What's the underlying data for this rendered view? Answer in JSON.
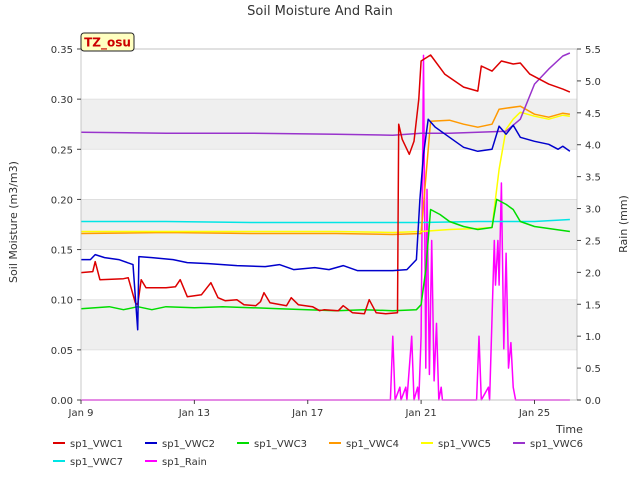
{
  "chart_data": {
    "type": "line",
    "title": "Soil Moisture And Rain",
    "badge": "TZ_osu",
    "xlabel": "Time",
    "ylabel": "Soil Moisture (m3/m3)",
    "y2label": "Rain (mm)",
    "xlim": [
      "2024-01-09",
      "2024-01-26 12:00"
    ],
    "x_ticks": [
      {
        "date": "2024-01-09",
        "label": "Jan 9"
      },
      {
        "date": "2024-01-13",
        "label": "Jan 13"
      },
      {
        "date": "2024-01-17",
        "label": "Jan 17"
      },
      {
        "date": "2024-01-21",
        "label": "Jan 21"
      },
      {
        "date": "2024-01-25",
        "label": "Jan 25"
      }
    ],
    "ylim": [
      0,
      0.35
    ],
    "y_ticks": [
      "0.00",
      "0.05",
      "0.10",
      "0.15",
      "0.20",
      "0.25",
      "0.30",
      "0.35"
    ],
    "y2lim": [
      0,
      5.5
    ],
    "y2_ticks": [
      "0.0",
      "0.5",
      "1.0",
      "1.5",
      "2.0",
      "2.5",
      "3.0",
      "3.5",
      "4.0",
      "4.5",
      "5.0",
      "5.5"
    ],
    "grid": "horizontal alternating bands",
    "legend_position": "bottom",
    "series": [
      {
        "name": "sp1_VWC1",
        "color": "#dd0000",
        "axis": "left",
        "points": [
          [
            "2024-01-09 00:00",
            0.127
          ],
          [
            "2024-01-09 10:00",
            0.128
          ],
          [
            "2024-01-09 12:00",
            0.138
          ],
          [
            "2024-01-09 16:00",
            0.12
          ],
          [
            "2024-01-10 12:00",
            0.121
          ],
          [
            "2024-01-10 16:00",
            0.122
          ],
          [
            "2024-01-10 22:00",
            0.097
          ],
          [
            "2024-01-11 00:00",
            0.095
          ],
          [
            "2024-01-11 03:00",
            0.12
          ],
          [
            "2024-01-11 07:00",
            0.112
          ],
          [
            "2024-01-12 00:00",
            0.112
          ],
          [
            "2024-01-12 08:00",
            0.113
          ],
          [
            "2024-01-12 12:00",
            0.12
          ],
          [
            "2024-01-12 18:00",
            0.103
          ],
          [
            "2024-01-13 06:00",
            0.105
          ],
          [
            "2024-01-13 14:00",
            0.117
          ],
          [
            "2024-01-13 20:00",
            0.102
          ],
          [
            "2024-01-14 02:00",
            0.099
          ],
          [
            "2024-01-14 12:00",
            0.1
          ],
          [
            "2024-01-14 18:00",
            0.095
          ],
          [
            "2024-01-15 04:00",
            0.094
          ],
          [
            "2024-01-15 08:00",
            0.098
          ],
          [
            "2024-01-15 11:00",
            0.107
          ],
          [
            "2024-01-15 16:00",
            0.097
          ],
          [
            "2024-01-16 06:00",
            0.094
          ],
          [
            "2024-01-16 10:00",
            0.102
          ],
          [
            "2024-01-16 16:00",
            0.095
          ],
          [
            "2024-01-17 04:00",
            0.093
          ],
          [
            "2024-01-17 10:00",
            0.089
          ],
          [
            "2024-01-17 14:00",
            0.09
          ],
          [
            "2024-01-18 02:00",
            0.089
          ],
          [
            "2024-01-18 06:00",
            0.094
          ],
          [
            "2024-01-18 14:00",
            0.087
          ],
          [
            "2024-01-19 00:00",
            0.086
          ],
          [
            "2024-01-19 04:00",
            0.1
          ],
          [
            "2024-01-19 10:00",
            0.087
          ],
          [
            "2024-01-19 18:00",
            0.086
          ],
          [
            "2024-01-20 04:00",
            0.087
          ],
          [
            "2024-01-20 05:00",
            0.275
          ],
          [
            "2024-01-20 08:00",
            0.26
          ],
          [
            "2024-01-20 14:00",
            0.245
          ],
          [
            "2024-01-20 18:00",
            0.258
          ],
          [
            "2024-01-20 22:00",
            0.3
          ],
          [
            "2024-01-21 00:00",
            0.338
          ],
          [
            "2024-01-21 08:00",
            0.344
          ],
          [
            "2024-01-21 20:00",
            0.325
          ],
          [
            "2024-01-22 12:00",
            0.312
          ],
          [
            "2024-01-23 00:00",
            0.308
          ],
          [
            "2024-01-23 03:00",
            0.333
          ],
          [
            "2024-01-23 12:00",
            0.328
          ],
          [
            "2024-01-23 20:00",
            0.338
          ],
          [
            "2024-01-24 06:00",
            0.335
          ],
          [
            "2024-01-24 12:00",
            0.336
          ],
          [
            "2024-01-24 20:00",
            0.325
          ],
          [
            "2024-01-25 12:00",
            0.315
          ],
          [
            "2024-01-26 00:00",
            0.31
          ],
          [
            "2024-01-26 06:00",
            0.307
          ]
        ]
      },
      {
        "name": "sp1_VWC2",
        "color": "#0000cc",
        "axis": "left",
        "points": [
          [
            "2024-01-09 00:00",
            0.14
          ],
          [
            "2024-01-09 08:00",
            0.14
          ],
          [
            "2024-01-09 12:00",
            0.145
          ],
          [
            "2024-01-09 20:00",
            0.142
          ],
          [
            "2024-01-10 08:00",
            0.14
          ],
          [
            "2024-01-10 20:00",
            0.135
          ],
          [
            "2024-01-11 00:00",
            0.07
          ],
          [
            "2024-01-11 01:00",
            0.143
          ],
          [
            "2024-01-11 12:00",
            0.142
          ],
          [
            "2024-01-12 06:00",
            0.14
          ],
          [
            "2024-01-12 18:00",
            0.137
          ],
          [
            "2024-01-13 12:00",
            0.136
          ],
          [
            "2024-01-14 12:00",
            0.134
          ],
          [
            "2024-01-15 12:00",
            0.133
          ],
          [
            "2024-01-16 00:00",
            0.135
          ],
          [
            "2024-01-16 12:00",
            0.13
          ],
          [
            "2024-01-17 06:00",
            0.132
          ],
          [
            "2024-01-17 18:00",
            0.13
          ],
          [
            "2024-01-18 06:00",
            0.134
          ],
          [
            "2024-01-18 18:00",
            0.129
          ],
          [
            "2024-01-19 00:00",
            0.129
          ],
          [
            "2024-01-20 00:00",
            0.129
          ],
          [
            "2024-01-20 12:00",
            0.13
          ],
          [
            "2024-01-20 20:00",
            0.14
          ],
          [
            "2024-01-20 23:00",
            0.2
          ],
          [
            "2024-01-21 02:00",
            0.245
          ],
          [
            "2024-01-21 06:00",
            0.28
          ],
          [
            "2024-01-21 12:00",
            0.272
          ],
          [
            "2024-01-22 00:00",
            0.262
          ],
          [
            "2024-01-22 12:00",
            0.252
          ],
          [
            "2024-01-23 00:00",
            0.248
          ],
          [
            "2024-01-23 12:00",
            0.25
          ],
          [
            "2024-01-23 18:00",
            0.273
          ],
          [
            "2024-01-24 00:00",
            0.265
          ],
          [
            "2024-01-24 06:00",
            0.274
          ],
          [
            "2024-01-24 12:00",
            0.262
          ],
          [
            "2024-01-25 00:00",
            0.258
          ],
          [
            "2024-01-25 12:00",
            0.255
          ],
          [
            "2024-01-25 20:00",
            0.25
          ],
          [
            "2024-01-26 00:00",
            0.253
          ],
          [
            "2024-01-26 06:00",
            0.248
          ]
        ]
      },
      {
        "name": "sp1_VWC3",
        "color": "#00dd00",
        "axis": "left",
        "points": [
          [
            "2024-01-09 00:00",
            0.091
          ],
          [
            "2024-01-09 12:00",
            0.092
          ],
          [
            "2024-01-10 00:00",
            0.093
          ],
          [
            "2024-01-10 12:00",
            0.09
          ],
          [
            "2024-01-11 00:00",
            0.093
          ],
          [
            "2024-01-11 12:00",
            0.09
          ],
          [
            "2024-01-12 00:00",
            0.093
          ],
          [
            "2024-01-13 00:00",
            0.092
          ],
          [
            "2024-01-14 00:00",
            0.093
          ],
          [
            "2024-01-15 00:00",
            0.092
          ],
          [
            "2024-01-16 00:00",
            0.091
          ],
          [
            "2024-01-17 00:00",
            0.09
          ],
          [
            "2024-01-18 00:00",
            0.089
          ],
          [
            "2024-01-19 00:00",
            0.09
          ],
          [
            "2024-01-20 00:00",
            0.089
          ],
          [
            "2024-01-20 20:00",
            0.09
          ],
          [
            "2024-01-21 00:00",
            0.095
          ],
          [
            "2024-01-21 04:00",
            0.13
          ],
          [
            "2024-01-21 08:00",
            0.19
          ],
          [
            "2024-01-21 16:00",
            0.185
          ],
          [
            "2024-01-22 00:00",
            0.178
          ],
          [
            "2024-01-22 12:00",
            0.173
          ],
          [
            "2024-01-23 00:00",
            0.17
          ],
          [
            "2024-01-23 12:00",
            0.172
          ],
          [
            "2024-01-23 16:00",
            0.2
          ],
          [
            "2024-01-24 00:00",
            0.195
          ],
          [
            "2024-01-24 06:00",
            0.19
          ],
          [
            "2024-01-24 12:00",
            0.178
          ],
          [
            "2024-01-25 00:00",
            0.173
          ],
          [
            "2024-01-25 12:00",
            0.171
          ],
          [
            "2024-01-26 00:00",
            0.169
          ],
          [
            "2024-01-26 06:00",
            0.168
          ]
        ]
      },
      {
        "name": "sp1_VWC4",
        "color": "#ff9900",
        "axis": "left",
        "points": [
          [
            "2024-01-09 00:00",
            0.166
          ],
          [
            "2024-01-12 00:00",
            0.167
          ],
          [
            "2024-01-15 00:00",
            0.166
          ],
          [
            "2024-01-18 00:00",
            0.166
          ],
          [
            "2024-01-20 00:00",
            0.165
          ],
          [
            "2024-01-21 00:00",
            0.166
          ],
          [
            "2024-01-21 08:00",
            0.278
          ],
          [
            "2024-01-22 00:00",
            0.279
          ],
          [
            "2024-01-22 12:00",
            0.275
          ],
          [
            "2024-01-23 00:00",
            0.272
          ],
          [
            "2024-01-23 12:00",
            0.275
          ],
          [
            "2024-01-23 18:00",
            0.29
          ],
          [
            "2024-01-24 12:00",
            0.293
          ],
          [
            "2024-01-25 00:00",
            0.285
          ],
          [
            "2024-01-25 12:00",
            0.282
          ],
          [
            "2024-01-26 00:00",
            0.286
          ],
          [
            "2024-01-26 06:00",
            0.285
          ]
        ]
      },
      {
        "name": "sp1_VWC5",
        "color": "#ffff00",
        "axis": "left",
        "points": [
          [
            "2024-01-09 00:00",
            0.168
          ],
          [
            "2024-01-12 00:00",
            0.168
          ],
          [
            "2024-01-15 00:00",
            0.168
          ],
          [
            "2024-01-18 00:00",
            0.168
          ],
          [
            "2024-01-20 00:00",
            0.167
          ],
          [
            "2024-01-21 00:00",
            0.168
          ],
          [
            "2024-01-22 00:00",
            0.17
          ],
          [
            "2024-01-23 00:00",
            0.171
          ],
          [
            "2024-01-23 12:00",
            0.172
          ],
          [
            "2024-01-23 18:00",
            0.23
          ],
          [
            "2024-01-24 00:00",
            0.27
          ],
          [
            "2024-01-24 06:00",
            0.28
          ],
          [
            "2024-01-24 12:00",
            0.287
          ],
          [
            "2024-01-25 00:00",
            0.283
          ],
          [
            "2024-01-25 12:00",
            0.28
          ],
          [
            "2024-01-26 00:00",
            0.284
          ],
          [
            "2024-01-26 06:00",
            0.283
          ]
        ]
      },
      {
        "name": "sp1_VWC6",
        "color": "#9933cc",
        "axis": "left",
        "points": [
          [
            "2024-01-09 00:00",
            0.267
          ],
          [
            "2024-01-12 00:00",
            0.266
          ],
          [
            "2024-01-15 00:00",
            0.266
          ],
          [
            "2024-01-18 00:00",
            0.265
          ],
          [
            "2024-01-20 00:00",
            0.264
          ],
          [
            "2024-01-21 00:00",
            0.266
          ],
          [
            "2024-01-22 00:00",
            0.266
          ],
          [
            "2024-01-23 00:00",
            0.267
          ],
          [
            "2024-01-24 00:00",
            0.268
          ],
          [
            "2024-01-24 12:00",
            0.28
          ],
          [
            "2024-01-25 00:00",
            0.315
          ],
          [
            "2024-01-25 12:00",
            0.33
          ],
          [
            "2024-01-26 00:00",
            0.343
          ],
          [
            "2024-01-26 06:00",
            0.346
          ]
        ]
      },
      {
        "name": "sp1_VWC7",
        "color": "#00e5e5",
        "axis": "left",
        "points": [
          [
            "2024-01-09 00:00",
            0.178
          ],
          [
            "2024-01-12 00:00",
            0.178
          ],
          [
            "2024-01-15 00:00",
            0.177
          ],
          [
            "2024-01-18 00:00",
            0.177
          ],
          [
            "2024-01-21 00:00",
            0.177
          ],
          [
            "2024-01-23 00:00",
            0.178
          ],
          [
            "2024-01-25 00:00",
            0.178
          ],
          [
            "2024-01-26 06:00",
            0.18
          ]
        ]
      },
      {
        "name": "sp1_Rain",
        "color": "#ff00ff",
        "axis": "right",
        "points": [
          [
            "2024-01-09 00:00",
            0
          ],
          [
            "2024-01-19 22:00",
            0
          ],
          [
            "2024-01-20 00:00",
            1.0
          ],
          [
            "2024-01-20 02:00",
            0
          ],
          [
            "2024-01-20 06:00",
            0.2
          ],
          [
            "2024-01-20 07:00",
            0
          ],
          [
            "2024-01-20 11:00",
            0.2
          ],
          [
            "2024-01-20 12:00",
            0
          ],
          [
            "2024-01-20 16:00",
            1.0
          ],
          [
            "2024-01-20 18:00",
            0
          ],
          [
            "2024-01-20 21:00",
            0.2
          ],
          [
            "2024-01-20 22:00",
            0
          ],
          [
            "2024-01-21 00:00",
            1.0
          ],
          [
            "2024-01-21 02:00",
            5.4
          ],
          [
            "2024-01-21 04:00",
            0.5
          ],
          [
            "2024-01-21 05:00",
            3.3
          ],
          [
            "2024-01-21 07:00",
            0.4
          ],
          [
            "2024-01-21 09:00",
            2.5
          ],
          [
            "2024-01-21 11:00",
            0.3
          ],
          [
            "2024-01-21 13:00",
            1.2
          ],
          [
            "2024-01-21 15:00",
            0
          ],
          [
            "2024-01-21 17:00",
            0.2
          ],
          [
            "2024-01-21 18:00",
            0
          ],
          [
            "2024-01-22 23:00",
            0
          ],
          [
            "2024-01-23 01:00",
            1.0
          ],
          [
            "2024-01-23 03:00",
            0
          ],
          [
            "2024-01-23 09:00",
            0.2
          ],
          [
            "2024-01-23 10:00",
            0
          ],
          [
            "2024-01-23 14:00",
            2.5
          ],
          [
            "2024-01-23 15:00",
            1.8
          ],
          [
            "2024-01-23 17:00",
            2.5
          ],
          [
            "2024-01-23 18:00",
            1.8
          ],
          [
            "2024-01-23 20:00",
            3.4
          ],
          [
            "2024-01-23 22:00",
            0.8
          ],
          [
            "2024-01-24 00:00",
            2.3
          ],
          [
            "2024-01-24 02:00",
            0.5
          ],
          [
            "2024-01-24 04:00",
            0.9
          ],
          [
            "2024-01-24 06:00",
            0.2
          ],
          [
            "2024-01-24 08:00",
            0
          ],
          [
            "2024-01-26 06:00",
            0
          ]
        ]
      }
    ]
  }
}
